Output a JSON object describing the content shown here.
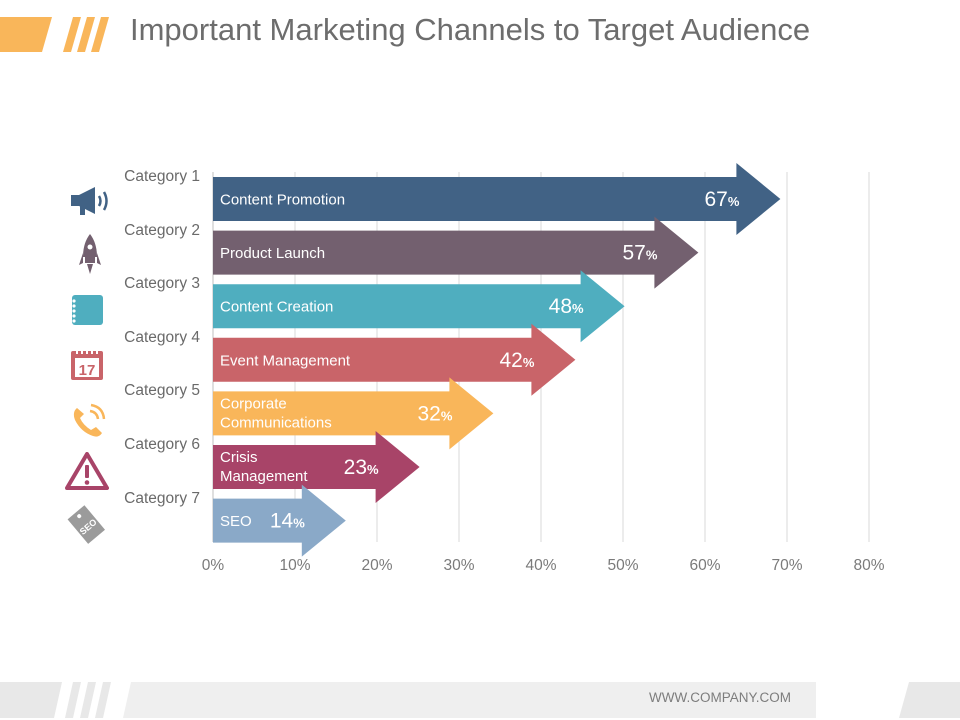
{
  "title": "Important Marketing Channels to Target Audience",
  "footer": {
    "url": "WWW.COMPANY.COM"
  },
  "colors": {
    "accent": "#f9b65a",
    "title_text": "#6d6d6d",
    "grid": "#d9d9d9",
    "footer_bar": "#e8e8e8"
  },
  "icons": [
    "megaphone-icon",
    "rocket-icon",
    "notepad-icon",
    "calendar-icon",
    "phone-icon",
    "warning-icon",
    "seo-tag-icon"
  ],
  "calendar_icon_text": "17",
  "seo_tag_text": "SEO",
  "chart_data": {
    "type": "bar",
    "orientation": "horizontal",
    "categories": [
      "Category 1",
      "Category 2",
      "Category 3",
      "Category 4",
      "Category 5",
      "Category 6",
      "Category 7"
    ],
    "bar_labels": [
      [
        "Content Promotion"
      ],
      [
        "Product Launch"
      ],
      [
        "Content Creation"
      ],
      [
        "Event Management"
      ],
      [
        "Corporate",
        "Communications"
      ],
      [
        "Crisis",
        "Management"
      ],
      [
        "SEO"
      ]
    ],
    "values": [
      67,
      57,
      48,
      42,
      32,
      23,
      14
    ],
    "value_unit": "%",
    "bar_colors": [
      "#416285",
      "#73606f",
      "#4faebf",
      "#c96469",
      "#f9b65a",
      "#a84468",
      "#8aa9c8"
    ],
    "xlim": [
      0,
      80
    ],
    "xticks": [
      "0%",
      "10%",
      "20%",
      "30%",
      "40%",
      "50%",
      "60%",
      "70%",
      "80%"
    ],
    "grid": true,
    "legend": "none"
  }
}
